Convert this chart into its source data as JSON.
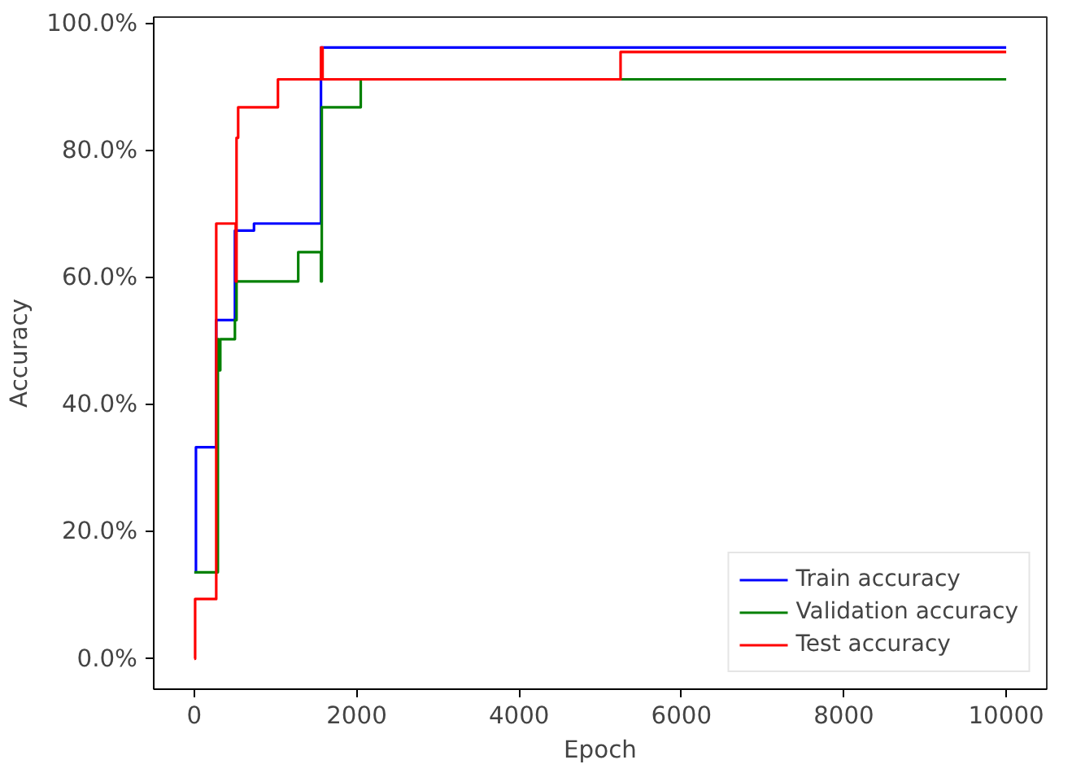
{
  "chart_data": {
    "type": "step",
    "xlabel": "Epoch",
    "ylabel": "Accuracy",
    "xlim": [
      -500,
      10500
    ],
    "xticks": [
      0,
      2000,
      4000,
      6000,
      8000,
      10000
    ],
    "ylim": [
      -4.8,
      101
    ],
    "yticks": [
      {
        "value": 0,
        "label": "0.0%"
      },
      {
        "value": 20,
        "label": "20.0%"
      },
      {
        "value": 40,
        "label": "40.0%"
      },
      {
        "value": 60,
        "label": "60.0%"
      },
      {
        "value": 80,
        "label": "80.0%"
      },
      {
        "value": 100,
        "label": "100.0%"
      }
    ],
    "grid": false,
    "legend": "bottom right",
    "line_style": "solid",
    "series": [
      {
        "name": "Train accuracy",
        "color": "#0000ff",
        "x": [
          0,
          20,
          270,
          500,
          735,
          1560,
          10000
        ],
        "values": [
          13.6,
          33.3,
          53.3,
          67.4,
          68.5,
          96.2,
          96.2
        ]
      },
      {
        "name": "Validation accuracy",
        "color": "#008000",
        "x": [
          0,
          290,
          300,
          320,
          500,
          520,
          1280,
          1560,
          1570,
          2050,
          10000
        ],
        "values": [
          13.6,
          50.3,
          45.4,
          50.3,
          53.3,
          59.4,
          64.0,
          59.4,
          86.8,
          91.2,
          91.2
        ]
      },
      {
        "name": "Test accuracy",
        "color": "#ff0000",
        "x": [
          0,
          10,
          270,
          510,
          520,
          540,
          1030,
          1560,
          1580,
          5250,
          10000
        ],
        "values": [
          0,
          9.4,
          68.5,
          59.4,
          82.0,
          86.8,
          91.2,
          96.2,
          91.2,
          95.5,
          95.5
        ]
      }
    ]
  }
}
